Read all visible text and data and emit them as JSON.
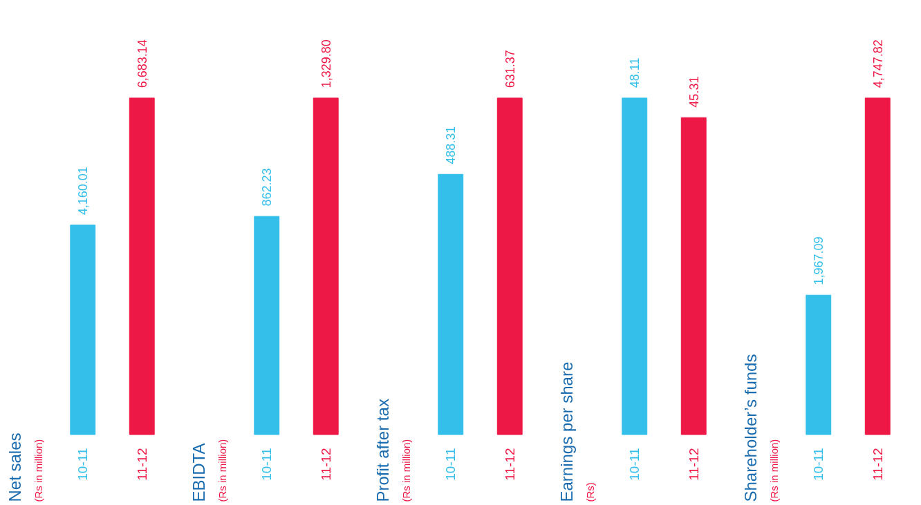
{
  "chart_data": [
    {
      "type": "bar",
      "title": "Net sales",
      "subtitle": "(Rs in million)",
      "categories": [
        "10-11",
        "11-12"
      ],
      "values": [
        4160.01,
        6683.14
      ],
      "colors": [
        "#33bfea",
        "#ee1846"
      ],
      "data_labels": true,
      "value_labels": [
        "4,160.01",
        "6,683.14"
      ]
    },
    {
      "type": "bar",
      "title": "EBIDTA",
      "subtitle": "(Rs in million)",
      "categories": [
        "10-11",
        "11-12"
      ],
      "values": [
        862.23,
        1329.8
      ],
      "colors": [
        "#33bfea",
        "#ee1846"
      ],
      "data_labels": true,
      "value_labels": [
        "862.23",
        "1,329.80"
      ]
    },
    {
      "type": "bar",
      "title": "Profit after tax",
      "subtitle": "(Rs in million)",
      "categories": [
        "10-11",
        "11-12"
      ],
      "values": [
        488.31,
        631.37
      ],
      "colors": [
        "#33bfea",
        "#ee1846"
      ],
      "data_labels": true,
      "value_labels": [
        "488.31",
        "631.37"
      ]
    },
    {
      "type": "bar",
      "title": "Earnings per share",
      "subtitle": "(Rs)",
      "categories": [
        "10-11",
        "11-12"
      ],
      "values": [
        48.11,
        45.31
      ],
      "colors": [
        "#33bfea",
        "#ee1846"
      ],
      "data_labels": true,
      "value_labels": [
        "48.11",
        "45.31"
      ]
    },
    {
      "type": "bar",
      "title": "Shareholder’s funds",
      "subtitle": "(Rs in million)",
      "categories": [
        "10-11",
        "11-12"
      ],
      "values": [
        1967.09,
        4747.82
      ],
      "colors": [
        "#33bfea",
        "#ee1846"
      ],
      "data_labels": true,
      "value_labels": [
        "1,967.09",
        "4,747.82"
      ]
    }
  ]
}
